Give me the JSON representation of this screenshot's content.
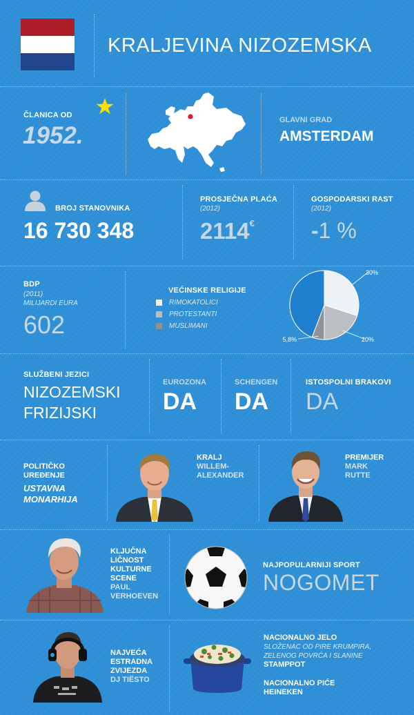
{
  "header": {
    "title": "KRALJEVINA NIZOZEMSKA"
  },
  "flag": {
    "colors": [
      "#ae1c28",
      "#ffffff",
      "#21468b"
    ]
  },
  "membership": {
    "label": "ČLANICA OD",
    "year": "1952.",
    "icon": "star-icon"
  },
  "capital": {
    "label": "GLAVNI GRAD",
    "value": "AMSTERDAM"
  },
  "population": {
    "label": "BROJ STANOVNIKA",
    "value": "16 730 348",
    "icon": "person-icon"
  },
  "salary": {
    "label": "PROSJEČNA PLAĆA",
    "year": "(2012)",
    "value": "2114",
    "unit": "€"
  },
  "growth": {
    "label": "GOSPODARSKI RAST",
    "year": "(2012)",
    "sign": "-",
    "value": "1 %"
  },
  "gdp": {
    "label": "BDP",
    "year": "(2011)",
    "unit": "MILIJARDI EURA",
    "value": "602"
  },
  "religions": {
    "title": "VEĆINSKE RELIGIJE",
    "items": [
      {
        "label": "RIMOKATOLICI",
        "color": "#ecf0f4"
      },
      {
        "label": "PROTESTANTI",
        "color": "#b9bcc0"
      },
      {
        "label": "MUSLIMANI",
        "color": "#8e9196"
      }
    ]
  },
  "chart_data": {
    "type": "pie",
    "slices": [
      {
        "label": "RIMOKATOLICI",
        "value": 30,
        "display": "30%",
        "color": "#eff2f5"
      },
      {
        "label": "PROTESTANTI",
        "value": 20,
        "display": "20%",
        "color": "#bbbec2"
      },
      {
        "label": "MUSLIMANI",
        "value": 5.8,
        "display": "5,8%",
        "color": "#8f9297"
      },
      {
        "label": "",
        "value": 44.2,
        "display": "",
        "color": "#1f7fcf"
      }
    ]
  },
  "languages": {
    "label": "SLUŽBENI JEZICI",
    "line1": "NIZOZEMSKI",
    "line2": "FRIZIJSKI"
  },
  "eurozone": {
    "label": "EUROZONA",
    "value": "DA"
  },
  "schengen": {
    "label": "SCHENGEN",
    "value": "DA"
  },
  "samesex": {
    "label": "ISTOSPOLNI BRAKOVI",
    "value": "DA"
  },
  "politics": {
    "line1": "POLITIČKO",
    "line2": "UREĐENJE",
    "value1": "USTAVNA",
    "value2": "MONARHIJA"
  },
  "king": {
    "line1": "KRALJ",
    "line2": "WILLEM-",
    "line3": "ALEXANDER"
  },
  "pm": {
    "line1": "PREMIJER",
    "line2": "MARK",
    "line3": "RUTTE"
  },
  "culture": {
    "lines": [
      "KLJUČNA",
      "LIČNOST",
      "KULTURNE",
      "SCENE"
    ],
    "name1": "PAUL",
    "name2": "VERHOEVEN"
  },
  "sport": {
    "label": "NAJPOPULARNIJI SPORT",
    "value": "NOGOMET"
  },
  "star": {
    "lines": [
      "NAJVEĆA",
      "ESTRADNA",
      "ZVIJEZDA"
    ],
    "name": "DJ TIËSTO"
  },
  "food": {
    "dish_label": "NACIONALNO JELO",
    "dish_desc1": "SLOŽENAC OD PIRE KRUMPIRA,",
    "dish_desc2": "ZELENOG POVRĆA I SLANINE",
    "dish_name": "STAMPPOT",
    "drink_label": "NACIONALNO PIĆE",
    "drink_name": "HEINEKEN"
  }
}
